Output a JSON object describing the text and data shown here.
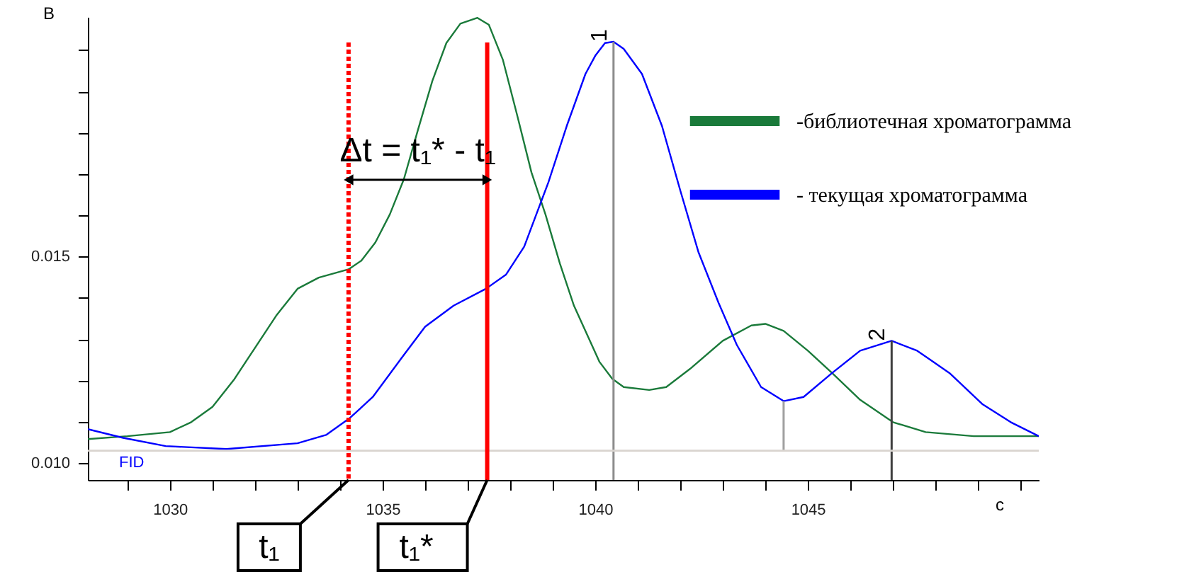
{
  "chart_data": {
    "type": "line",
    "xlabel": "с",
    "ylabel": "В",
    "xlim": [
      1028.07,
      1050.43
    ],
    "ylim": [
      0.00959,
      0.0208
    ],
    "xticks": [
      {
        "value": 1029,
        "label": null
      },
      1030,
      {
        "value": 1031,
        "label": null
      },
      {
        "value": 1032,
        "label": null
      },
      {
        "value": 1033,
        "label": null
      },
      {
        "value": 1034,
        "label": null
      },
      1035,
      {
        "value": 1036,
        "label": null
      },
      {
        "value": 1037,
        "label": null
      },
      {
        "value": 1038,
        "label": null
      },
      {
        "value": 1039,
        "label": null
      },
      1040,
      {
        "value": 1041,
        "label": null
      },
      {
        "value": 1042,
        "label": null
      },
      {
        "value": 1043,
        "label": null
      },
      {
        "value": 1044,
        "label": null
      },
      1045,
      {
        "value": 1046,
        "label": null
      },
      {
        "value": 1047,
        "label": null
      },
      {
        "value": 1048,
        "label": null
      },
      {
        "value": 1049,
        "label": null
      },
      {
        "value": 1050,
        "label": null
      }
    ],
    "yticks": [
      {
        "value": 0.01,
        "label": "0.010"
      },
      {
        "value": 0.011,
        "label": null
      },
      {
        "value": 0.012,
        "label": null
      },
      {
        "value": 0.013,
        "label": null
      },
      {
        "value": 0.014,
        "label": null
      },
      {
        "value": 0.015,
        "label": "0.015"
      },
      {
        "value": 0.016,
        "label": null
      },
      {
        "value": 0.017,
        "label": null
      },
      {
        "value": 0.018,
        "label": null
      },
      {
        "value": 0.019,
        "label": null
      },
      {
        "value": 0.02,
        "label": null
      }
    ],
    "grid": false,
    "legend": "top right",
    "series": [
      {
        "name": "-библиотечная хроматограмма",
        "color": "#1a7a3a",
        "x": [
          1028.07,
          1029.0,
          1030.0,
          1030.5,
          1031.0,
          1031.5,
          1032.0,
          1032.5,
          1033.0,
          1033.5,
          1034.2,
          1034.5,
          1034.83,
          1035.17,
          1035.5,
          1035.83,
          1036.17,
          1036.5,
          1036.83,
          1037.23,
          1037.5,
          1037.83,
          1038.17,
          1038.5,
          1038.83,
          1039.17,
          1039.5,
          1040.1,
          1040.4,
          1040.67,
          1041.27,
          1041.67,
          1042.23,
          1043.0,
          1043.67,
          1044.0,
          1044.43,
          1045.0,
          1045.57,
          1046.23,
          1047.0,
          1047.77,
          1048.9,
          1050.43
        ],
        "values": [
          0.01058,
          0.01065,
          0.01075,
          0.01099,
          0.01136,
          0.01201,
          0.01279,
          0.01357,
          0.01422,
          0.01449,
          0.01469,
          0.0149,
          0.01534,
          0.01602,
          0.01687,
          0.01806,
          0.01925,
          0.02017,
          0.02064,
          0.02078,
          0.02061,
          0.01976,
          0.0184,
          0.01704,
          0.01602,
          0.01483,
          0.01381,
          0.01245,
          0.01204,
          0.01184,
          0.01177,
          0.01184,
          0.01228,
          0.01296,
          0.01333,
          0.01337,
          0.0132,
          0.01272,
          0.01218,
          0.01153,
          0.01099,
          0.01075,
          0.01065,
          0.01065
        ]
      },
      {
        "name": "- текущая хроматограмма",
        "color": "#0000ff",
        "x": [
          1028.07,
          1028.9,
          1029.9,
          1031.33,
          1033.0,
          1033.67,
          1034.23,
          1034.77,
          1035.43,
          1036.0,
          1036.67,
          1037.43,
          1037.9,
          1038.33,
          1038.9,
          1039.33,
          1039.77,
          1040.0,
          1040.23,
          1040.43,
          1040.67,
          1041.1,
          1041.57,
          1042.0,
          1042.43,
          1042.9,
          1043.33,
          1043.9,
          1044.43,
          1044.9,
          1045.57,
          1046.23,
          1046.97,
          1047.57,
          1048.33,
          1049.1,
          1049.77,
          1050.43
        ],
        "values": [
          0.01082,
          0.01061,
          0.01041,
          0.01034,
          0.01048,
          0.01068,
          0.01109,
          0.0116,
          0.01252,
          0.0133,
          0.01381,
          0.01422,
          0.01456,
          0.01524,
          0.0168,
          0.01816,
          0.01942,
          0.01986,
          0.02017,
          0.0202,
          0.02003,
          0.01942,
          0.01816,
          0.0166,
          0.0151,
          0.01388,
          0.01286,
          0.01184,
          0.0115,
          0.0116,
          0.01218,
          0.01272,
          0.01296,
          0.01272,
          0.01218,
          0.01143,
          0.01099,
          0.01065
        ]
      },
      {
        "color": "#8c8c8c",
        "x": [
          1040.43,
          1040.43
        ],
        "values": [
          0.00959,
          0.0202
        ]
      },
      {
        "color": "#a0a0a0",
        "x": [
          1044.43,
          1044.43
        ],
        "values": [
          0.0103,
          0.0115
        ]
      },
      {
        "color": "#404040",
        "x": [
          1046.97,
          1046.97
        ],
        "values": [
          0.00959,
          0.01296
        ]
      }
    ],
    "ref_lines": [
      {
        "axis": "y",
        "value": 0.0103,
        "color": "#d9d4cf",
        "line_style": "solid"
      },
      {
        "axis": "x",
        "value": 1034.2,
        "color": "#ff0000",
        "line_style": "dotted"
      },
      {
        "axis": "x",
        "value": 1037.46,
        "color": "#ff0000",
        "line_style": "solid"
      }
    ],
    "annotations": [
      {
        "text": "1",
        "x": 1040.43,
        "y": 0.0202
      },
      {
        "text": "2",
        "x": 1046.97,
        "y": 0.01296
      },
      "Δt = t₁* - t₁",
      {
        "text": "t₁",
        "x": 1034.2,
        "y": 0.00959
      },
      {
        "text": "t₁*",
        "x": 1037.46,
        "y": 0.00959
      },
      "FID"
    ]
  }
}
